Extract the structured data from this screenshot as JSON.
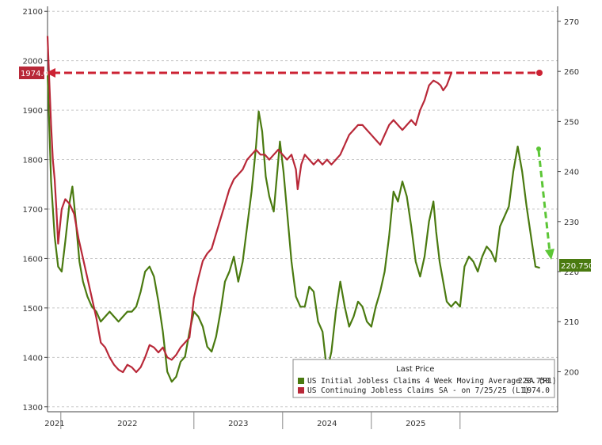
{
  "chart_data": {
    "type": "line",
    "title": "",
    "xlabel": "",
    "x_tick_labels": [
      "2021",
      "2022",
      "2023",
      "2024",
      "2025"
    ],
    "left_axis": {
      "ylim": [
        1290,
        2110
      ],
      "ticks": [
        1300,
        1400,
        1500,
        1600,
        1700,
        1800,
        1900,
        2000,
        2100
      ]
    },
    "right_axis": {
      "ylim": [
        192,
        273
      ],
      "ticks": [
        200,
        210,
        220,
        230,
        240,
        250,
        260,
        270
      ]
    },
    "grid": "dashed-horizontal",
    "legend": {
      "placement": "bottom-right",
      "title": "Last Price",
      "entries": [
        {
          "label": "US Initial Jobless Claims 4 Week Moving Average SA (R1)",
          "value": "220.750",
          "color": "#4a7a10"
        },
        {
          "label": "US Continuing Jobless Claims SA - on 7/25/25 (L1)",
          "value": "1974.0",
          "color": "#b82838"
        }
      ]
    },
    "series": [
      {
        "name": "US Continuing Jobless Claims SA - on 7/25/25",
        "axis": "left",
        "color": "#b82838",
        "points": [
          [
            2021.0,
            2050
          ],
          [
            2021.02,
            1960
          ],
          [
            2021.04,
            1870
          ],
          [
            2021.06,
            1800
          ],
          [
            2021.08,
            1760
          ],
          [
            2021.1,
            1700
          ],
          [
            2021.12,
            1630
          ],
          [
            2021.16,
            1700
          ],
          [
            2021.2,
            1720
          ],
          [
            2021.25,
            1710
          ],
          [
            2021.3,
            1690
          ],
          [
            2021.35,
            1640
          ],
          [
            2021.4,
            1600
          ],
          [
            2021.45,
            1560
          ],
          [
            2021.5,
            1520
          ],
          [
            2021.55,
            1480
          ],
          [
            2021.6,
            1430
          ],
          [
            2021.65,
            1420
          ],
          [
            2021.7,
            1400
          ],
          [
            2021.75,
            1385
          ],
          [
            2021.8,
            1375
          ],
          [
            2021.85,
            1370
          ],
          [
            2021.9,
            1385
          ],
          [
            2021.95,
            1380
          ],
          [
            2022.0,
            1370
          ],
          [
            2022.05,
            1380
          ],
          [
            2022.1,
            1400
          ],
          [
            2022.15,
            1425
          ],
          [
            2022.2,
            1420
          ],
          [
            2022.25,
            1410
          ],
          [
            2022.3,
            1420
          ],
          [
            2022.35,
            1400
          ],
          [
            2022.4,
            1395
          ],
          [
            2022.45,
            1405
          ],
          [
            2022.5,
            1420
          ],
          [
            2022.55,
            1430
          ],
          [
            2022.6,
            1440
          ],
          [
            2022.65,
            1520
          ],
          [
            2022.7,
            1560
          ],
          [
            2022.75,
            1595
          ],
          [
            2022.8,
            1610
          ],
          [
            2022.85,
            1620
          ],
          [
            2022.9,
            1650
          ],
          [
            2022.95,
            1680
          ],
          [
            2023.0,
            1710
          ],
          [
            2023.05,
            1740
          ],
          [
            2023.1,
            1760
          ],
          [
            2023.15,
            1770
          ],
          [
            2023.2,
            1780
          ],
          [
            2023.25,
            1800
          ],
          [
            2023.3,
            1810
          ],
          [
            2023.35,
            1820
          ],
          [
            2023.4,
            1810
          ],
          [
            2023.45,
            1810
          ],
          [
            2023.5,
            1800
          ],
          [
            2023.55,
            1810
          ],
          [
            2023.6,
            1820
          ],
          [
            2023.65,
            1810
          ],
          [
            2023.7,
            1800
          ],
          [
            2023.75,
            1810
          ],
          [
            2023.8,
            1780
          ],
          [
            2023.82,
            1740
          ],
          [
            2023.86,
            1790
          ],
          [
            2023.9,
            1810
          ],
          [
            2023.95,
            1800
          ],
          [
            2024.0,
            1790
          ],
          [
            2024.05,
            1800
          ],
          [
            2024.1,
            1790
          ],
          [
            2024.15,
            1800
          ],
          [
            2024.2,
            1790
          ],
          [
            2024.25,
            1800
          ],
          [
            2024.3,
            1810
          ],
          [
            2024.35,
            1830
          ],
          [
            2024.4,
            1850
          ],
          [
            2024.45,
            1860
          ],
          [
            2024.5,
            1870
          ],
          [
            2024.55,
            1870
          ],
          [
            2024.6,
            1860
          ],
          [
            2024.65,
            1850
          ],
          [
            2024.7,
            1840
          ],
          [
            2024.75,
            1830
          ],
          [
            2024.8,
            1850
          ],
          [
            2024.85,
            1870
          ],
          [
            2024.9,
            1880
          ],
          [
            2024.95,
            1870
          ],
          [
            2025.0,
            1860
          ],
          [
            2025.05,
            1870
          ],
          [
            2025.1,
            1880
          ],
          [
            2025.15,
            1870
          ],
          [
            2025.2,
            1900
          ],
          [
            2025.25,
            1920
          ],
          [
            2025.3,
            1950
          ],
          [
            2025.35,
            1960
          ],
          [
            2025.4,
            1955
          ],
          [
            2025.43,
            1950
          ],
          [
            2025.46,
            1940
          ],
          [
            2025.5,
            1950
          ],
          [
            2025.55,
            1974
          ]
        ]
      },
      {
        "name": "US Initial Jobless Claims 4 Week Moving Average SA",
        "axis": "right",
        "color": "#4a7a10",
        "points": [
          [
            2021.0,
            260
          ],
          [
            2021.04,
            238
          ],
          [
            2021.08,
            227
          ],
          [
            2021.12,
            221
          ],
          [
            2021.16,
            220
          ],
          [
            2021.2,
            226
          ],
          [
            2021.25,
            234
          ],
          [
            2021.28,
            237
          ],
          [
            2021.32,
            230
          ],
          [
            2021.36,
            222
          ],
          [
            2021.4,
            218
          ],
          [
            2021.45,
            215
          ],
          [
            2021.5,
            213
          ],
          [
            2021.55,
            212
          ],
          [
            2021.6,
            210
          ],
          [
            2021.65,
            211
          ],
          [
            2021.7,
            212
          ],
          [
            2021.75,
            211
          ],
          [
            2021.8,
            210
          ],
          [
            2021.85,
            211
          ],
          [
            2021.9,
            212
          ],
          [
            2021.95,
            212
          ],
          [
            2022.0,
            213
          ],
          [
            2022.05,
            216
          ],
          [
            2022.1,
            220
          ],
          [
            2022.15,
            221
          ],
          [
            2022.2,
            219
          ],
          [
            2022.25,
            214
          ],
          [
            2022.3,
            208
          ],
          [
            2022.35,
            200
          ],
          [
            2022.4,
            198
          ],
          [
            2022.45,
            199
          ],
          [
            2022.5,
            202
          ],
          [
            2022.55,
            203
          ],
          [
            2022.6,
            208
          ],
          [
            2022.65,
            212
          ],
          [
            2022.7,
            211
          ],
          [
            2022.75,
            209
          ],
          [
            2022.8,
            205
          ],
          [
            2022.85,
            204
          ],
          [
            2022.9,
            207
          ],
          [
            2022.95,
            212
          ],
          [
            2023.0,
            218
          ],
          [
            2023.05,
            220
          ],
          [
            2023.1,
            223
          ],
          [
            2023.15,
            218
          ],
          [
            2023.2,
            222
          ],
          [
            2023.25,
            229
          ],
          [
            2023.3,
            236
          ],
          [
            2023.35,
            245
          ],
          [
            2023.38,
            252
          ],
          [
            2023.42,
            248
          ],
          [
            2023.46,
            239
          ],
          [
            2023.5,
            235
          ],
          [
            2023.55,
            232
          ],
          [
            2023.6,
            242
          ],
          [
            2023.62,
            246
          ],
          [
            2023.66,
            240
          ],
          [
            2023.7,
            232
          ],
          [
            2023.75,
            222
          ],
          [
            2023.8,
            215
          ],
          [
            2023.85,
            213
          ],
          [
            2023.9,
            213
          ],
          [
            2023.95,
            217
          ],
          [
            2024.0,
            216
          ],
          [
            2024.05,
            210
          ],
          [
            2024.1,
            208
          ],
          [
            2024.15,
            200
          ],
          [
            2024.2,
            204
          ],
          [
            2024.25,
            212
          ],
          [
            2024.3,
            218
          ],
          [
            2024.35,
            213
          ],
          [
            2024.4,
            209
          ],
          [
            2024.45,
            211
          ],
          [
            2024.5,
            214
          ],
          [
            2024.55,
            213
          ],
          [
            2024.6,
            210
          ],
          [
            2024.65,
            209
          ],
          [
            2024.7,
            213
          ],
          [
            2024.75,
            216
          ],
          [
            2024.8,
            220
          ],
          [
            2024.85,
            227
          ],
          [
            2024.9,
            236
          ],
          [
            2024.95,
            234
          ],
          [
            2025.0,
            238
          ],
          [
            2025.05,
            235
          ],
          [
            2025.1,
            229
          ],
          [
            2025.15,
            222
          ],
          [
            2025.2,
            219
          ],
          [
            2025.25,
            223
          ],
          [
            2025.3,
            230
          ],
          [
            2025.35,
            234
          ],
          [
            2025.38,
            228
          ],
          [
            2025.42,
            222
          ],
          [
            2025.46,
            218
          ],
          [
            2025.5,
            214
          ],
          [
            2025.55,
            213
          ],
          [
            2025.6,
            214
          ],
          [
            2025.65,
            213
          ],
          [
            2025.7,
            221
          ],
          [
            2025.75,
            223
          ],
          [
            2025.8,
            222
          ],
          [
            2025.85,
            220
          ],
          [
            2025.9,
            223
          ],
          [
            2025.95,
            225
          ],
          [
            2026.0,
            224
          ],
          [
            2026.05,
            222
          ],
          [
            2026.1,
            229
          ],
          [
            2026.15,
            231
          ],
          [
            2026.2,
            233
          ],
          [
            2026.25,
            240
          ],
          [
            2026.3,
            245
          ],
          [
            2026.35,
            240
          ],
          [
            2026.4,
            233
          ],
          [
            2026.45,
            227
          ],
          [
            2026.5,
            221
          ],
          [
            2026.55,
            220.75
          ]
        ]
      }
    ],
    "annotations": {
      "left_last_price_label": "1974.0",
      "right_last_price_label": "220.750"
    }
  }
}
